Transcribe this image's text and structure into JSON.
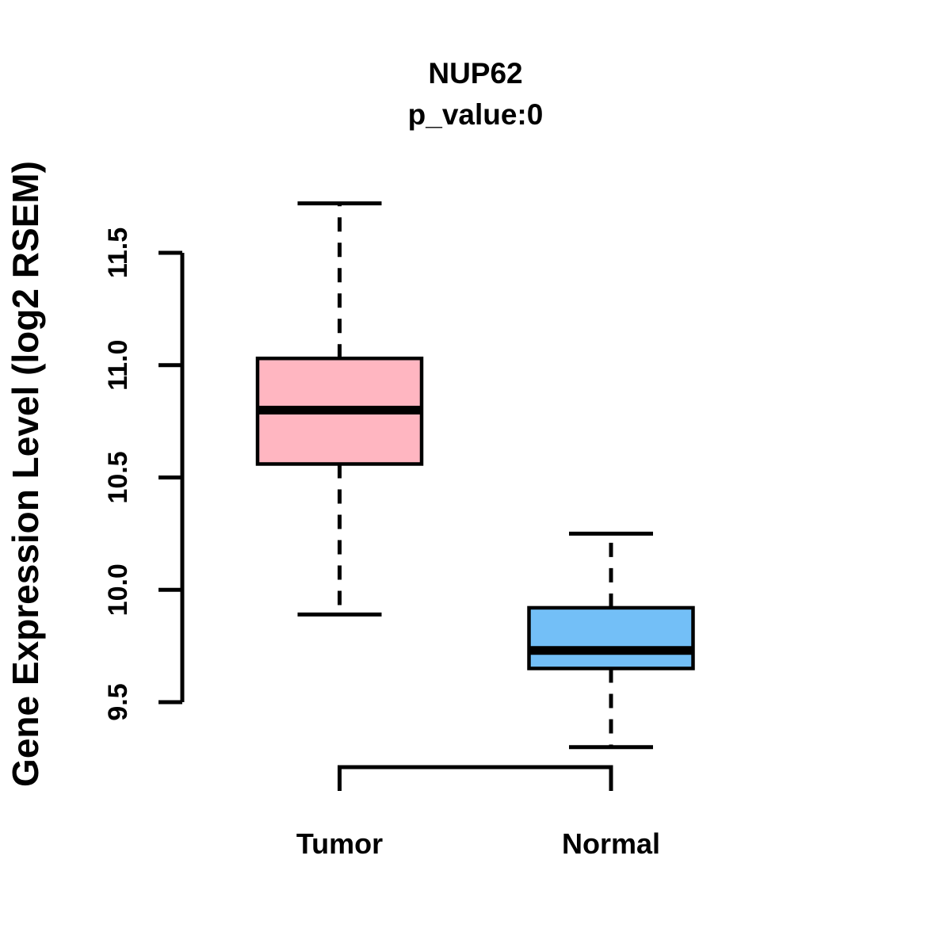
{
  "title": "NUP62",
  "subtitle": "p_value:0",
  "y_axis": {
    "label": "Gene Expression Level (log2 RSEM)",
    "tick_labels": [
      "9.5",
      "10.0",
      "10.5",
      "11.0",
      "11.5"
    ]
  },
  "x_axis": {
    "categories": [
      "Tumor",
      "Normal"
    ]
  },
  "chart_data": {
    "type": "boxplot",
    "title": "NUP62",
    "subtitle": "p_value:0",
    "ylabel": "Gene Expression Level (log2 RSEM)",
    "xlabel": "",
    "categories": [
      "Tumor",
      "Normal"
    ],
    "ylim": [
      9.5,
      11.5
    ],
    "yticks": [
      9.5,
      10.0,
      10.5,
      11.0,
      11.5
    ],
    "grid": false,
    "legend": "none",
    "series": [
      {
        "name": "Tumor",
        "fill": "#FFB6C1",
        "whisker_low": 9.89,
        "q1": 10.56,
        "median": 10.8,
        "q3": 11.03,
        "whisker_high": 11.72
      },
      {
        "name": "Normal",
        "fill": "#73BFF7",
        "whisker_low": 9.3,
        "q1": 9.65,
        "median": 9.73,
        "q3": 9.92,
        "whisker_high": 10.25
      }
    ],
    "comparison_bracket": {
      "from": "Tumor",
      "to": "Normal",
      "label": ""
    },
    "colors": {
      "stroke": "#000000",
      "background": "#FFFFFF",
      "tumor_fill": "#FFB6C1",
      "normal_fill": "#73BFF7"
    }
  }
}
